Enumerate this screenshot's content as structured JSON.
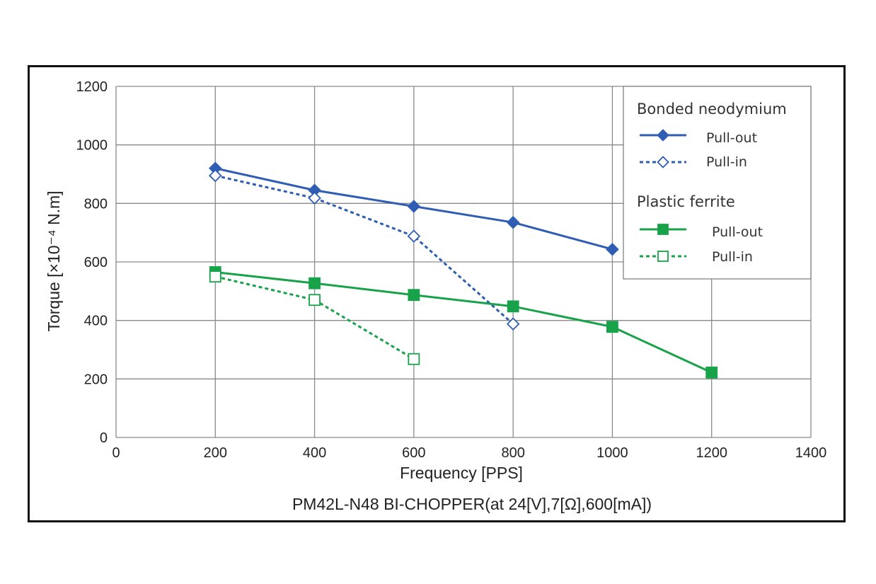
{
  "chart_data": {
    "type": "line",
    "caption": "PM42L-N48 BI-CHOPPER(at 24[V],7[Ω],600[mA])",
    "xlabel": "Frequency [PPS]",
    "ylabel": "Torque [×10⁻⁴ N.m]",
    "xlim": [
      0,
      1400
    ],
    "ylim": [
      0,
      1200
    ],
    "xticks": [
      0,
      200,
      400,
      600,
      800,
      1000,
      1200,
      1400
    ],
    "yticks": [
      0,
      200,
      400,
      600,
      800,
      1000,
      1200
    ],
    "grid": true,
    "legend_position": "top-right",
    "legend_groups": [
      {
        "title": "Bonded neodymium",
        "entries": [
          "Pull-out",
          "Pull-in"
        ]
      },
      {
        "title": "Plastic ferrite",
        "entries": [
          "Pull-out",
          "Pull-in"
        ]
      }
    ],
    "series": [
      {
        "group": "Bonded neodymium",
        "name": "Pull-out",
        "color": "#2e5db3",
        "marker": "diamond",
        "filled": true,
        "dashed": false,
        "x": [
          200,
          400,
          600,
          800,
          1000
        ],
        "y": [
          920,
          845,
          790,
          735,
          643
        ]
      },
      {
        "group": "Bonded neodymium",
        "name": "Pull-in",
        "color": "#2e5db3",
        "marker": "diamond",
        "filled": false,
        "dashed": true,
        "x": [
          200,
          400,
          600,
          800
        ],
        "y": [
          895,
          818,
          688,
          388
        ]
      },
      {
        "group": "Plastic ferrite",
        "name": "Pull-out",
        "color": "#18a24a",
        "marker": "square",
        "filled": true,
        "dashed": false,
        "x": [
          200,
          400,
          600,
          800,
          1000,
          1200
        ],
        "y": [
          565,
          527,
          487,
          448,
          378,
          222
        ]
      },
      {
        "group": "Plastic ferrite",
        "name": "Pull-in",
        "color": "#18a24a",
        "marker": "square",
        "filled": false,
        "dashed": true,
        "x": [
          200,
          400,
          600
        ],
        "y": [
          550,
          470,
          268
        ]
      }
    ]
  }
}
